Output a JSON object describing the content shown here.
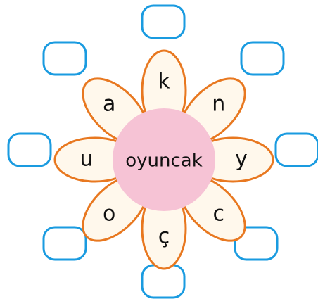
{
  "center": "oyuncak",
  "petals": [
    "k",
    "n",
    "y",
    "c",
    "ç",
    "o",
    "u",
    "a"
  ]
}
